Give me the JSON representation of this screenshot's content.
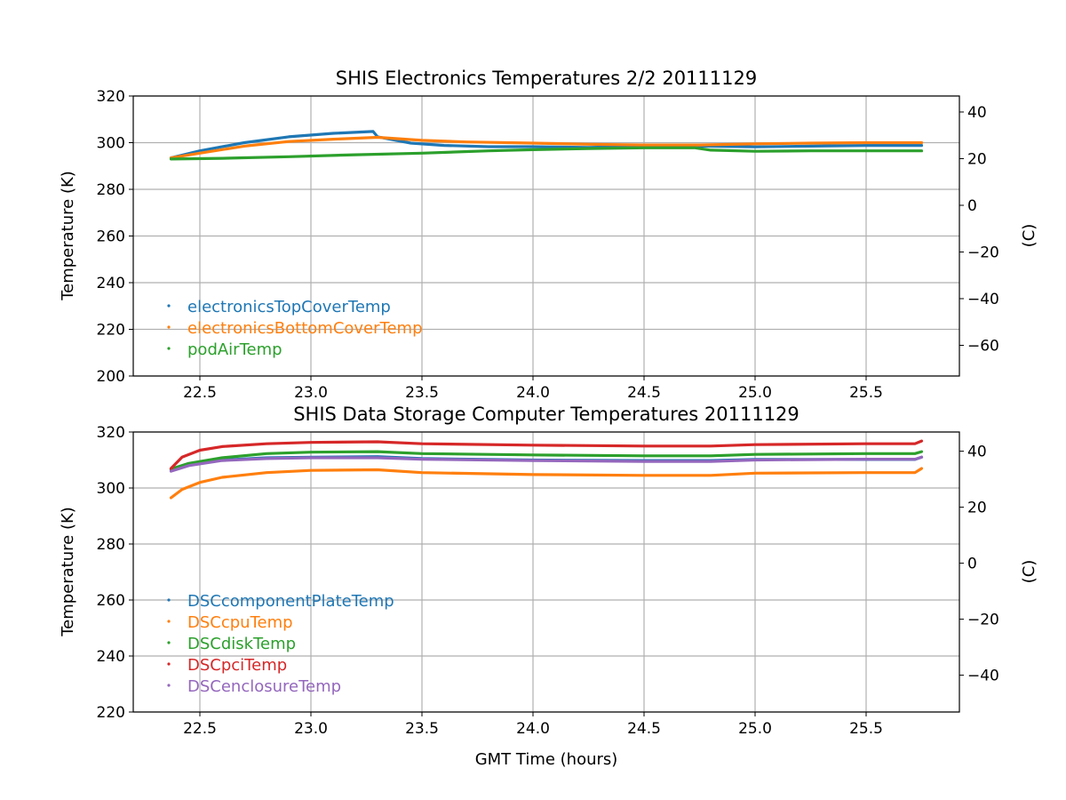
{
  "chart_data": [
    {
      "type": "line",
      "title": "SHIS Electronics Temperatures 2/2 20111129",
      "xlabel": "",
      "ylabel": "Temperature (K)",
      "ylabel_right": "(C)",
      "xlim": [
        22.2,
        25.92
      ],
      "ylim": [
        200,
        320
      ],
      "xticks": [
        "22.5",
        "23.0",
        "23.5",
        "24.0",
        "24.5",
        "25.0",
        "25.5"
      ],
      "yticks": [
        "200",
        "220",
        "240",
        "260",
        "280",
        "300",
        "320"
      ],
      "yticks_right": [
        "−60",
        "−40",
        "−20",
        "0",
        "20",
        "40"
      ],
      "grid": true,
      "legend_position": "lower-left",
      "series": [
        {
          "name": "electronicsTopCoverTemp",
          "color": "#1f77b4",
          "x": [
            22.37,
            22.5,
            22.7,
            22.9,
            23.1,
            23.28,
            23.3,
            23.45,
            23.6,
            23.8,
            24.0,
            24.25,
            24.5,
            24.75,
            25.0,
            25.25,
            25.5,
            25.75
          ],
          "y": [
            293.5,
            296.5,
            300.0,
            302.5,
            304.0,
            304.8,
            302.5,
            299.8,
            298.8,
            298.3,
            298.3,
            298.0,
            298.5,
            298.5,
            298.2,
            298.5,
            298.8,
            298.8
          ]
        },
        {
          "name": "electronicsBottomCoverTemp",
          "color": "#ff7f0e",
          "x": [
            22.37,
            22.5,
            22.7,
            22.9,
            23.1,
            23.3,
            23.5,
            23.7,
            24.0,
            24.25,
            24.5,
            24.75,
            25.0,
            25.25,
            25.5,
            25.75
          ],
          "y": [
            293.5,
            295.5,
            298.5,
            300.5,
            301.5,
            302.3,
            301.0,
            300.3,
            299.8,
            299.3,
            299.0,
            299.0,
            299.5,
            299.8,
            300.0,
            300.0
          ]
        },
        {
          "name": "podAirTemp",
          "color": "#2ca02c",
          "x": [
            22.37,
            22.6,
            22.9,
            23.2,
            23.5,
            23.8,
            24.0,
            24.25,
            24.5,
            24.73,
            24.8,
            25.0,
            25.25,
            25.5,
            25.75
          ],
          "y": [
            293.0,
            293.3,
            294.0,
            294.8,
            295.5,
            296.5,
            297.0,
            297.5,
            297.8,
            297.8,
            296.8,
            296.3,
            296.5,
            296.5,
            296.5
          ]
        }
      ]
    },
    {
      "type": "line",
      "title": "SHIS Data Storage Computer Temperatures 20111129",
      "xlabel": "GMT Time (hours)",
      "ylabel": "Temperature (K)",
      "ylabel_right": "(C)",
      "xlim": [
        22.2,
        25.92
      ],
      "ylim": [
        220,
        320
      ],
      "xticks": [
        "22.5",
        "23.0",
        "23.5",
        "24.0",
        "24.5",
        "25.0",
        "25.5"
      ],
      "yticks": [
        "220",
        "240",
        "260",
        "280",
        "300",
        "320"
      ],
      "yticks_right": [
        "−40",
        "−20",
        "0",
        "20",
        "40"
      ],
      "grid": true,
      "legend_position": "lower-left",
      "series": [
        {
          "name": "DSCcomponentPlateTemp",
          "color": "#1f77b4",
          "x": [
            22.37,
            22.45,
            22.6,
            22.8,
            23.0,
            23.3,
            23.5,
            24.0,
            24.5,
            24.8,
            25.0,
            25.5,
            25.72,
            25.75
          ],
          "y": [
            306.5,
            308.5,
            310.0,
            310.8,
            311.0,
            311.2,
            310.5,
            310.0,
            309.8,
            309.8,
            310.2,
            310.2,
            310.2,
            311.0
          ]
        },
        {
          "name": "DSCcpuTemp",
          "color": "#ff7f0e",
          "x": [
            22.37,
            22.42,
            22.5,
            22.6,
            22.8,
            23.0,
            23.3,
            23.5,
            24.0,
            24.5,
            24.8,
            25.0,
            25.5,
            25.72,
            25.75
          ],
          "y": [
            296.5,
            299.5,
            302.0,
            303.8,
            305.5,
            306.3,
            306.5,
            305.5,
            304.8,
            304.5,
            304.5,
            305.3,
            305.5,
            305.5,
            307.0
          ]
        },
        {
          "name": "DSCdiskTemp",
          "color": "#2ca02c",
          "x": [
            22.37,
            22.45,
            22.6,
            22.8,
            23.0,
            23.3,
            23.5,
            24.0,
            24.5,
            24.8,
            25.0,
            25.5,
            25.72,
            25.75
          ],
          "y": [
            306.8,
            308.8,
            310.8,
            312.3,
            312.8,
            313.0,
            312.3,
            311.8,
            311.5,
            311.5,
            312.0,
            312.3,
            312.3,
            313.0
          ]
        },
        {
          "name": "DSCpciTemp",
          "color": "#d62728",
          "x": [
            22.37,
            22.42,
            22.5,
            22.6,
            22.8,
            23.0,
            23.3,
            23.5,
            24.0,
            24.5,
            24.8,
            25.0,
            25.5,
            25.72,
            25.75
          ],
          "y": [
            307.0,
            311.0,
            313.5,
            314.8,
            315.8,
            316.3,
            316.5,
            315.8,
            315.3,
            315.0,
            315.0,
            315.5,
            315.8,
            315.8,
            316.8
          ]
        },
        {
          "name": "DSCenclosureTemp",
          "color": "#9467bd",
          "x": [
            22.37,
            22.45,
            22.6,
            22.8,
            23.0,
            23.3,
            23.5,
            24.0,
            24.5,
            24.8,
            25.0,
            25.5,
            25.72,
            25.75
          ],
          "y": [
            306.0,
            308.0,
            309.8,
            310.5,
            310.8,
            310.8,
            310.3,
            309.8,
            309.5,
            309.5,
            310.0,
            310.3,
            310.3,
            311.0
          ]
        }
      ]
    }
  ]
}
